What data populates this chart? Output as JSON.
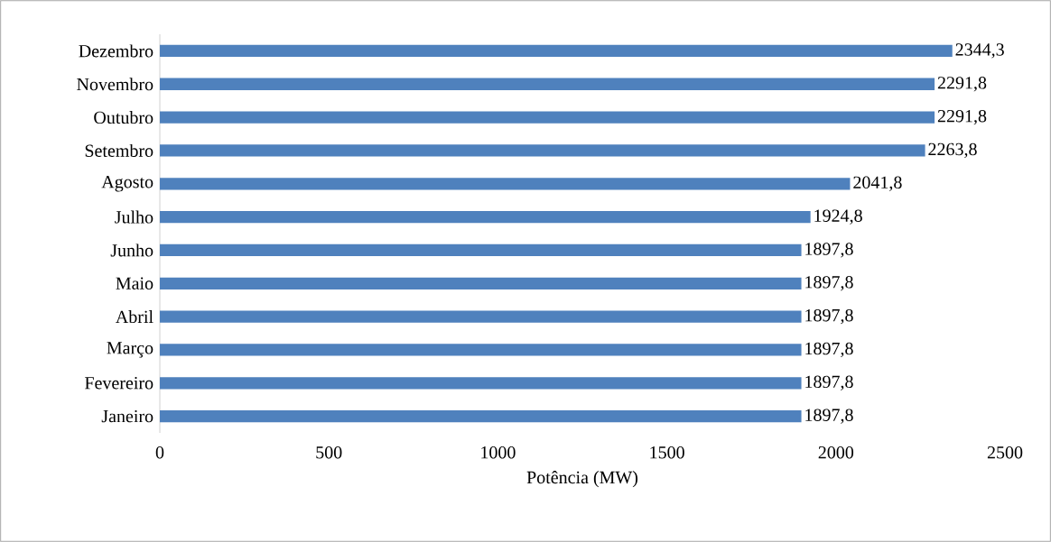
{
  "chart_data": {
    "type": "bar",
    "orientation": "horizontal",
    "xlabel": "Potência (MW)",
    "categories": [
      "Dezembro",
      "Novembro",
      "Outubro",
      "Setembro",
      "Agosto",
      "Julho",
      "Junho",
      "Maio",
      "Abril",
      "Março",
      "Fevereiro",
      "Janeiro"
    ],
    "values": [
      2344.3,
      2291.8,
      2291.8,
      2263.8,
      2041.8,
      1924.8,
      1897.8,
      1897.8,
      1897.8,
      1897.8,
      1897.8,
      1897.8
    ],
    "value_labels": [
      "2344,3",
      "2291,8",
      "2291,8",
      "2263,8",
      "2041,8",
      "1924,8",
      "1897,8",
      "1897,8",
      "1897,8",
      "1897,8",
      "1897,8",
      "1897,8"
    ],
    "color": "#4f81bd",
    "xlim": [
      0,
      2500
    ],
    "xticks": [
      0,
      500,
      1000,
      1500,
      2000,
      2500
    ]
  }
}
